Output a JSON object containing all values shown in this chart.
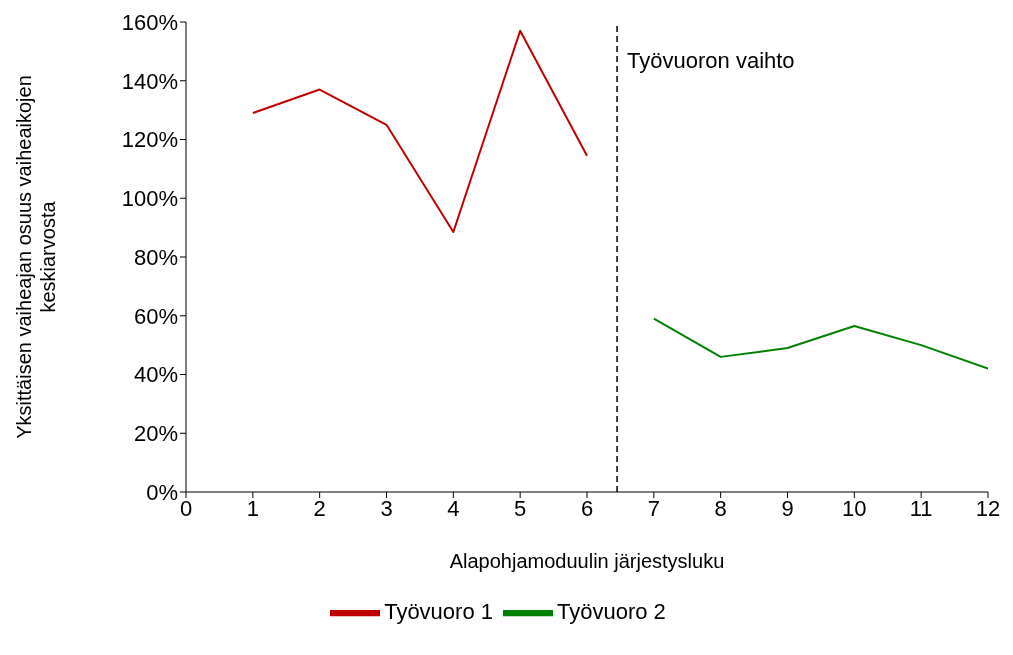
{
  "chart_data": {
    "type": "line",
    "xlabel": "Alapohjamoduulin järjestysluku",
    "ylabel": "Yksittäisen vaiheajan osuus vaiheaikojen\nkeskiarvosta",
    "x": [
      1,
      2,
      3,
      4,
      5,
      6,
      7,
      8,
      9,
      10,
      11,
      12
    ],
    "series": [
      {
        "name": "Työvuoro 1",
        "color": "#c00000",
        "values": [
          129,
          137,
          125,
          88.5,
          157,
          114.5,
          null,
          null,
          null,
          null,
          null,
          null
        ]
      },
      {
        "name": "Työvuoro 2",
        "color": "#008000",
        "values": [
          null,
          null,
          null,
          null,
          null,
          null,
          59,
          46,
          49,
          56.5,
          50,
          42
        ]
      }
    ],
    "xlim": [
      0,
      12
    ],
    "xticks": [
      0,
      1,
      2,
      3,
      4,
      5,
      6,
      7,
      8,
      9,
      10,
      11,
      12
    ],
    "ylim": [
      0,
      160
    ],
    "yticks": [
      {
        "value": 0,
        "label": "0%"
      },
      {
        "value": 20,
        "label": "20%"
      },
      {
        "value": 40,
        "label": "40%"
      },
      {
        "value": 60,
        "label": "60%"
      },
      {
        "value": 80,
        "label": "80%"
      },
      {
        "value": 100,
        "label": "100%"
      },
      {
        "value": 120,
        "label": "120%"
      },
      {
        "value": 140,
        "label": "140%"
      },
      {
        "value": 160,
        "label": "160%"
      }
    ],
    "ref_lines": [
      {
        "axis": "x",
        "value": 6.45,
        "label": "Työvuoron vaihto",
        "color": "#000000",
        "line_style": "dashed"
      }
    ],
    "grid": false,
    "legend": "bottom",
    "marker": "none",
    "line_style": "solid"
  }
}
